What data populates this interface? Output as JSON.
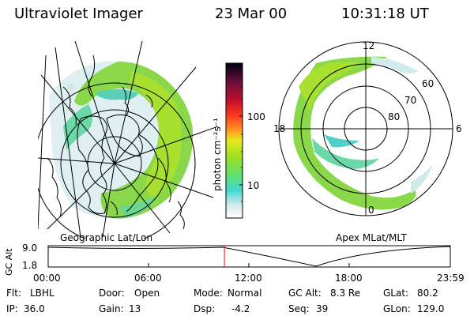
{
  "header": {
    "instrument": "Ultraviolet Imager",
    "date": "23 Mar 00",
    "time": "10:31:18 UT"
  },
  "colorbar": {
    "unit_label": "photon cm⁻²s⁻¹",
    "ticks": [
      "100",
      "10"
    ]
  },
  "geo_panel": {
    "caption": "Geographic Lat/Lon"
  },
  "apex_panel": {
    "caption": "Apex MLat/MLT",
    "mlt_labels": {
      "top": "12",
      "left": "18",
      "right": "6",
      "bottom": "0"
    },
    "lat_labels": [
      "60",
      "70",
      "80"
    ]
  },
  "altitude_plot": {
    "ylabel": "GC Alt",
    "y_ticks": [
      "9.0",
      "1.8"
    ],
    "x_ticks": [
      "00:00",
      "06:00",
      "12:00",
      "18:00",
      "23:59"
    ],
    "current_time_hours": 10.52
  },
  "status": {
    "filter_label": "Flt:",
    "filter_value": "LBHL",
    "door_label": "Door:",
    "door_value": "Open",
    "mode_label": "Mode:",
    "mode_value": "Normal",
    "gc_alt_label": "GC Alt:",
    "gc_alt_value": "8.3 Re",
    "glat_label": "GLat:",
    "glat_value": "80.2",
    "ip_label": "IP:",
    "ip_value": "36.0",
    "gain_label": "Gain:",
    "gain_value": "13",
    "dsp_label": "Dsp:",
    "dsp_value": "-4.2",
    "seq_label": "Seq:",
    "seq_value": "39",
    "glon_label": "GLon:",
    "glon_value": "129.0"
  }
}
